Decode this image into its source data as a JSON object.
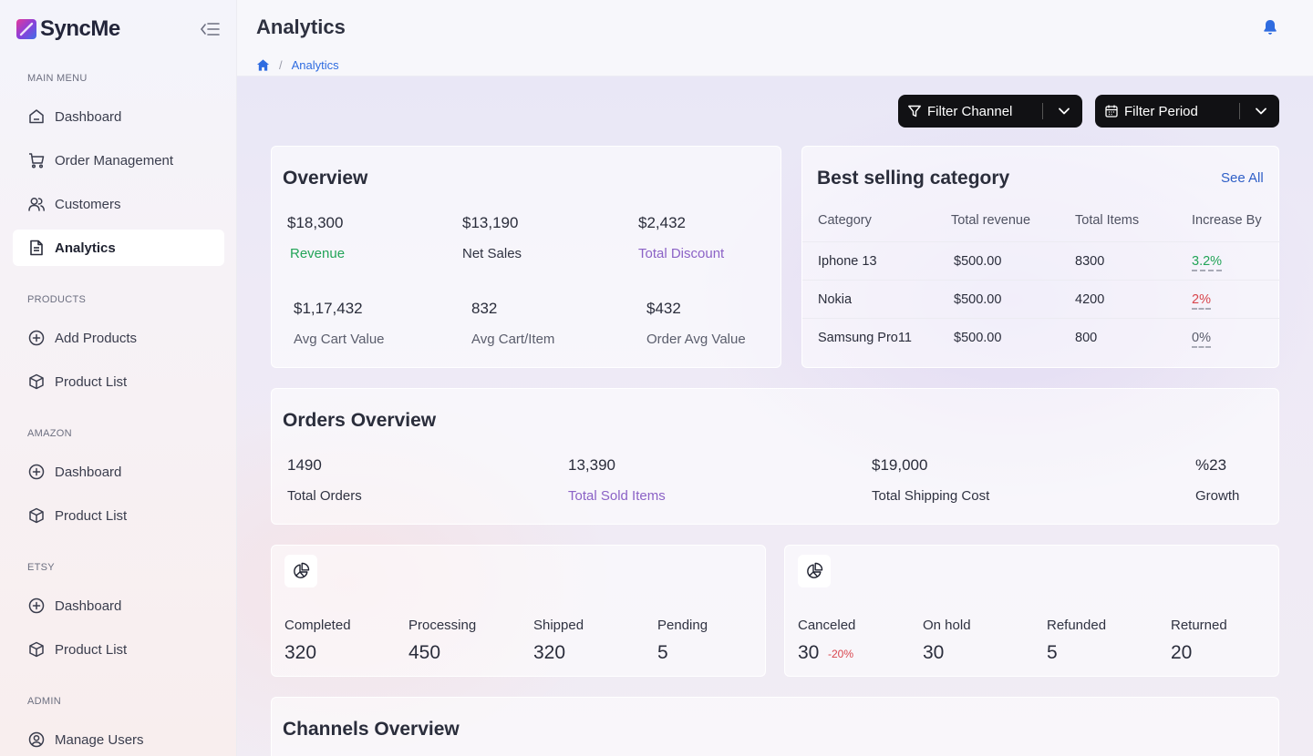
{
  "app": {
    "brand": "SyncMe",
    "accent": "#2f6ce0"
  },
  "sidebar": {
    "sections": [
      {
        "label": "MAIN MENU",
        "items": [
          {
            "label": "Dashboard",
            "icon": "home-icon"
          },
          {
            "label": "Order Management",
            "icon": "cart-icon"
          },
          {
            "label": "Customers",
            "icon": "users-icon"
          },
          {
            "label": "Analytics",
            "icon": "document-icon",
            "active": true
          }
        ]
      },
      {
        "label": "PRODUCTS",
        "items": [
          {
            "label": "Add Products",
            "icon": "plus-circle-icon"
          },
          {
            "label": "Product List",
            "icon": "box-icon"
          }
        ]
      },
      {
        "label": "AMAZON",
        "items": [
          {
            "label": "Dashboard",
            "icon": "plus-circle-icon"
          },
          {
            "label": "Product List",
            "icon": "box-icon"
          }
        ]
      },
      {
        "label": "ETSY",
        "items": [
          {
            "label": "Dashboard",
            "icon": "plus-circle-icon"
          },
          {
            "label": "Product List",
            "icon": "box-icon"
          }
        ]
      },
      {
        "label": "ADMIN",
        "items": [
          {
            "label": "Manage Users",
            "icon": "user-circle-icon"
          }
        ]
      }
    ]
  },
  "header": {
    "title": "Analytics",
    "breadcrumb": {
      "current": "Analytics"
    }
  },
  "filters": {
    "channel_label": "Filter Channel",
    "period_label": "Filter Period"
  },
  "overview": {
    "title": "Overview",
    "stats": [
      {
        "value": "$18,300",
        "label": "Revenue"
      },
      {
        "value": "$13,190",
        "label": "Net Sales"
      },
      {
        "value": "$2,432",
        "label": "Total Discount"
      },
      {
        "value": "$1,17,432",
        "label": "Avg Cart Value"
      },
      {
        "value": "832",
        "label": "Avg Cart/Item"
      },
      {
        "value": "$432",
        "label": "Order Avg Value"
      }
    ]
  },
  "best_selling": {
    "title": "Best selling category",
    "see_all": "See All",
    "columns": [
      "Category",
      "Total revenue",
      "Total Items",
      "Increase By"
    ],
    "rows": [
      {
        "category": "Iphone 13",
        "revenue": "$500.00",
        "items": "8300",
        "increase": "3.2%"
      },
      {
        "category": "Nokia",
        "revenue": "$500.00",
        "items": "4200",
        "increase": "2%"
      },
      {
        "category": "Samsung Pro11",
        "revenue": "$500.00",
        "items": "800",
        "increase": "0%"
      }
    ]
  },
  "orders_overview": {
    "title": "Orders Overview",
    "stats": [
      {
        "value": "1490",
        "label": "Total Orders"
      },
      {
        "value": "13,390",
        "label": "Total Sold Items"
      },
      {
        "value": "$19,000",
        "label": "Total Shipping Cost"
      },
      {
        "value": "%23",
        "label": "Growth"
      }
    ]
  },
  "order_status_a": {
    "items": [
      {
        "label": "Completed",
        "value": "320"
      },
      {
        "label": "Processing",
        "value": "450"
      },
      {
        "label": "Shipped",
        "value": "320"
      },
      {
        "label": "Pending",
        "value": "5"
      }
    ]
  },
  "order_status_b": {
    "items": [
      {
        "label": "Canceled",
        "value": "30",
        "change": "-20%"
      },
      {
        "label": "On hold",
        "value": "30"
      },
      {
        "label": "Refunded",
        "value": "5"
      },
      {
        "label": "Returned",
        "value": "20"
      }
    ]
  },
  "channels": {
    "title": "Channels Overview"
  }
}
